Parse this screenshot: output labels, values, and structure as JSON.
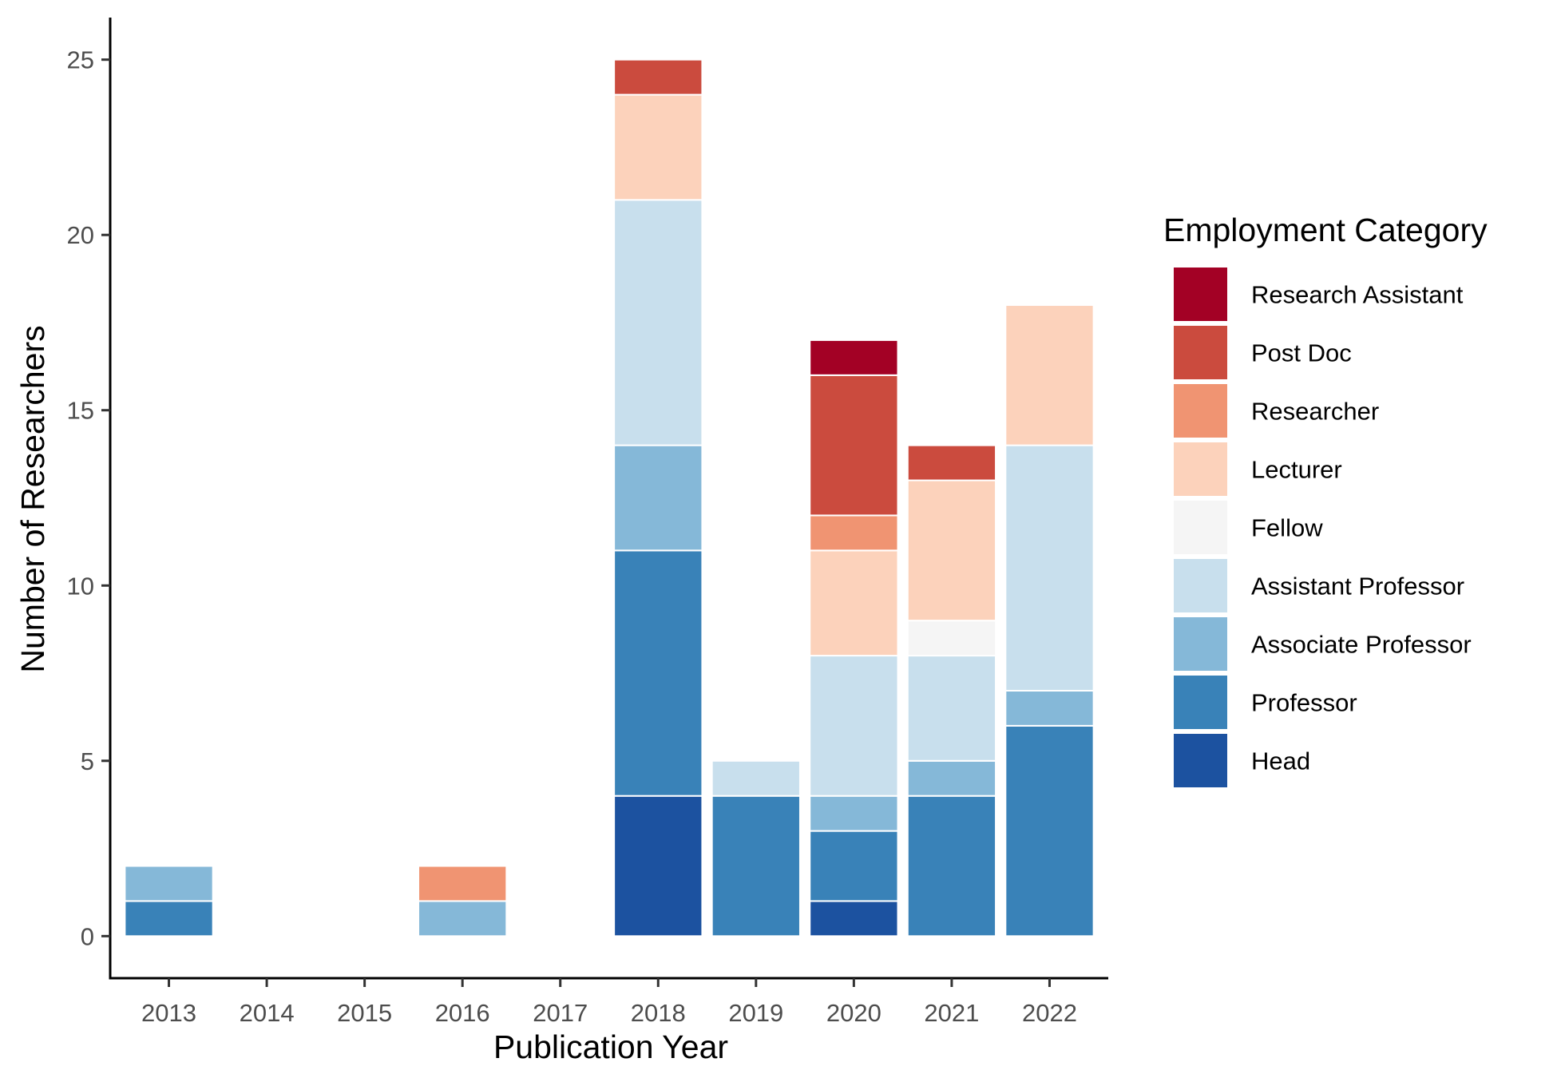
{
  "chart_data": {
    "type": "bar",
    "stacked": true,
    "title": "",
    "xlabel": "Publication Year",
    "ylabel": "Number of Researchers",
    "ylim": [
      -1.2,
      26.2
    ],
    "yticks": [
      0,
      5,
      10,
      15,
      20,
      25
    ],
    "grid": false,
    "legend_position": "right",
    "legend_title": "Employment Category",
    "categories": [
      "2013",
      "2014",
      "2015",
      "2016",
      "2017",
      "2018",
      "2019",
      "2020",
      "2021",
      "2022"
    ],
    "series": [
      {
        "name": "Head",
        "color": "#1c52a0",
        "values": [
          0,
          0,
          0,
          0,
          0,
          4,
          0,
          1,
          0,
          0
        ]
      },
      {
        "name": "Professor",
        "color": "#3982b8",
        "values": [
          1,
          0,
          0,
          0,
          0,
          7,
          4,
          2,
          4,
          6
        ]
      },
      {
        "name": "Associate Professor",
        "color": "#85b8d8",
        "values": [
          1,
          0,
          0,
          1,
          0,
          3,
          0,
          1,
          1,
          1
        ]
      },
      {
        "name": "Assistant Professor",
        "color": "#c8dfed",
        "values": [
          0,
          0,
          0,
          0,
          0,
          7,
          1,
          4,
          3,
          7
        ]
      },
      {
        "name": "Fellow",
        "color": "#f5f5f5",
        "values": [
          0,
          0,
          0,
          0,
          0,
          0,
          0,
          0,
          1,
          0
        ]
      },
      {
        "name": "Lecturer",
        "color": "#fcd2bb",
        "values": [
          0,
          0,
          0,
          0,
          0,
          3,
          0,
          3,
          4,
          4
        ]
      },
      {
        "name": "Researcher",
        "color": "#f09472",
        "values": [
          0,
          0,
          0,
          1,
          0,
          0,
          0,
          1,
          0,
          0
        ]
      },
      {
        "name": "Post Doc",
        "color": "#cb4b3e",
        "values": [
          0,
          0,
          0,
          0,
          0,
          1,
          0,
          4,
          1,
          0
        ]
      },
      {
        "name": "Research Assistant",
        "color": "#a30125",
        "values": [
          0,
          0,
          0,
          0,
          0,
          0,
          0,
          1,
          0,
          0
        ]
      }
    ],
    "legend_order": [
      "Research Assistant",
      "Post Doc",
      "Researcher",
      "Lecturer",
      "Fellow",
      "Assistant Professor",
      "Associate Professor",
      "Professor",
      "Head"
    ]
  }
}
